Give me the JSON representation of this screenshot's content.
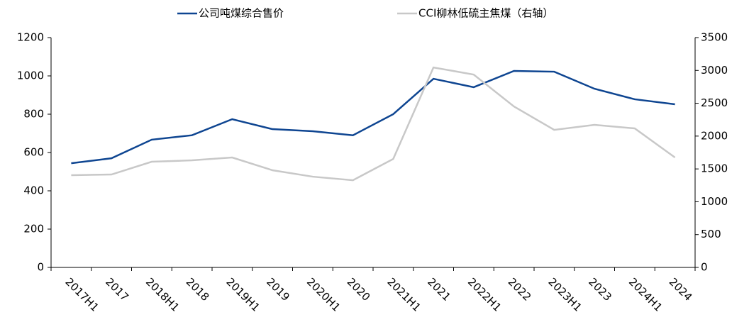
{
  "chart_data": {
    "type": "line",
    "categories": [
      "2017H1",
      "2017",
      "2018H1",
      "2018",
      "2019H1",
      "2019",
      "2020H1",
      "2020",
      "2021H1",
      "2021",
      "2022H1",
      "2022",
      "2023H1",
      "2023",
      "2024H1",
      "2024"
    ],
    "series": [
      {
        "name": "公司吨煤综合售价",
        "color": "#0e4591",
        "values": [
          544,
          570,
          667,
          690,
          774,
          722,
          711,
          690,
          800,
          985,
          941,
          1026,
          1022,
          933,
          878,
          852
        ]
      },
      {
        "name": "CCI柳林低硫主焦煤（右轴）",
        "color": "#c8c8c8",
        "axis": "y2",
        "values": [
          1404,
          1415,
          1609,
          1631,
          1674,
          1480,
          1382,
          1328,
          1652,
          3045,
          2937,
          2451,
          2095,
          2171,
          2117,
          1674
        ]
      }
    ],
    "ylim": [
      0,
      1200
    ],
    "yticks": [
      0,
      200,
      400,
      600,
      800,
      1000,
      1200
    ],
    "y2lim": [
      0,
      3500
    ],
    "y2ticks": [
      0,
      500,
      1000,
      1500,
      2000,
      2500,
      3000,
      3500
    ]
  }
}
